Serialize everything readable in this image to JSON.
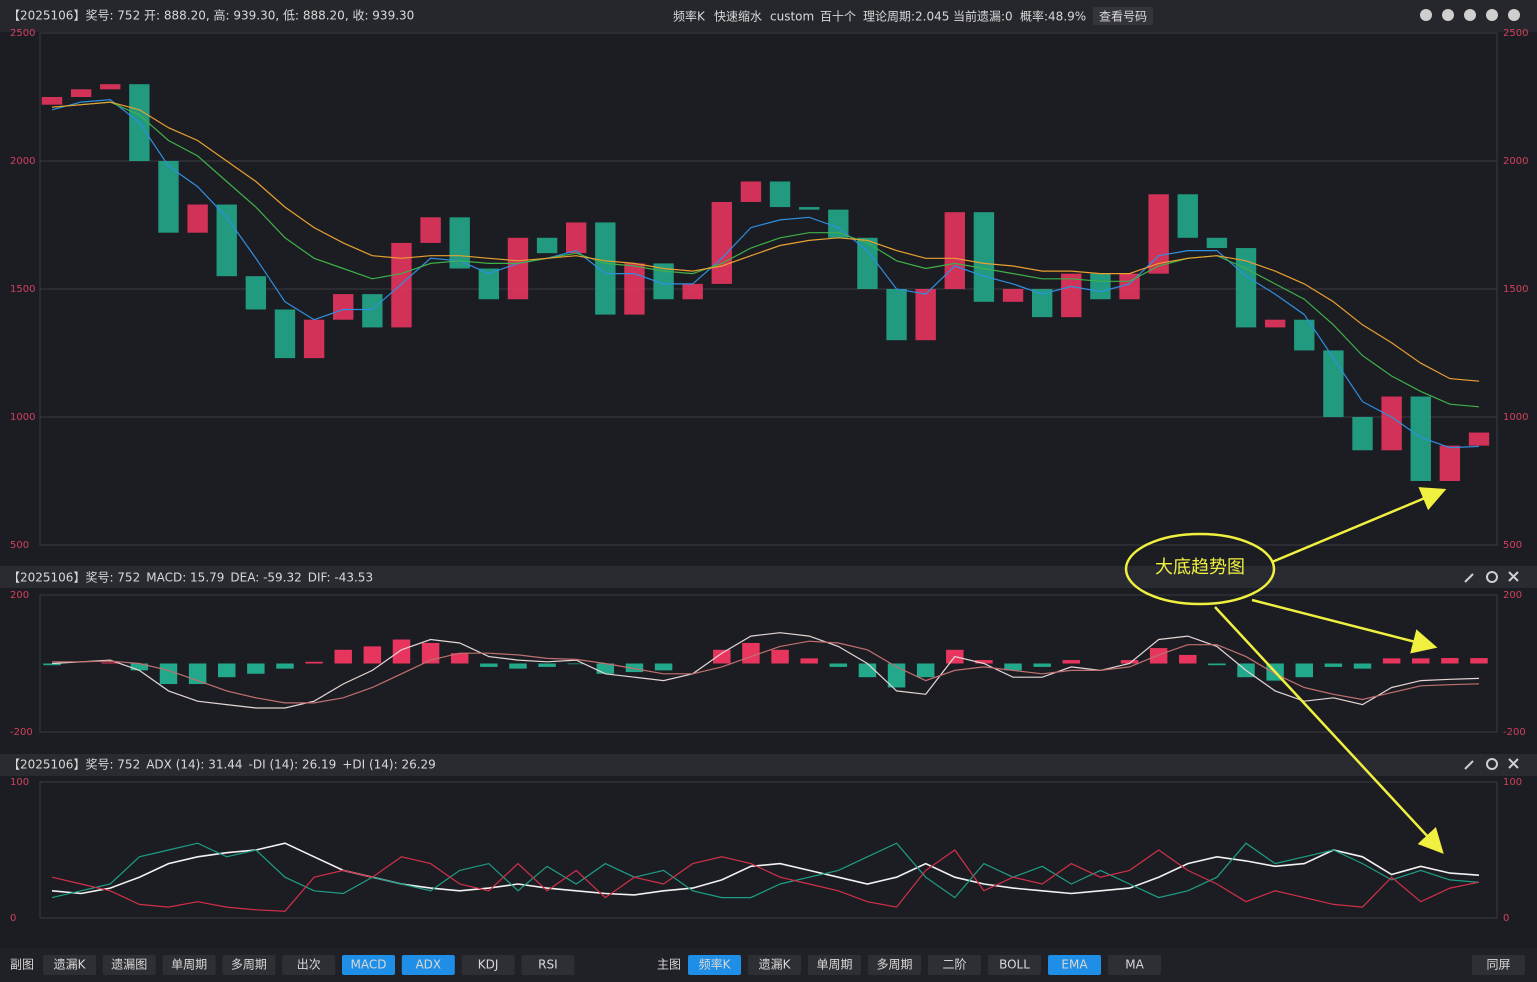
{
  "header": {
    "items": [
      "频率K",
      "快速缩水",
      "custom",
      "百十个",
      "理论周期:2.045",
      "当前遗漏:0",
      "概率:48.9%"
    ],
    "button": "查看号码"
  },
  "chart_data": [
    {
      "type": "candlestick",
      "title": "【2025106】奖号: 752   开: 888.20, 高: 939.30, 低: 888.20, 收: 939.30",
      "open": [
        2220,
        2250,
        2280,
        2300,
        2000,
        1720,
        1830,
        1550,
        1420,
        1230,
        1380,
        1480,
        1350,
        1680,
        1780,
        1580,
        1460,
        1700,
        1640,
        1760,
        1400,
        1600,
        1460,
        1520,
        1840,
        1920,
        1820,
        1810,
        1700,
        1500,
        1300,
        1500,
        1800,
        1450,
        1500,
        1390,
        1560,
        1460,
        1560,
        1870,
        1700,
        1660,
        1350,
        1380,
        1260,
        1000,
        870,
        1080,
        750,
        888.2
      ],
      "close": [
        2250,
        2280,
        2300,
        2000,
        1720,
        1830,
        1550,
        1420,
        1230,
        1380,
        1480,
        1350,
        1680,
        1780,
        1580,
        1460,
        1700,
        1640,
        1760,
        1400,
        1600,
        1460,
        1520,
        1840,
        1920,
        1820,
        1810,
        1700,
        1500,
        1300,
        1500,
        1800,
        1450,
        1500,
        1390,
        1560,
        1460,
        1560,
        1870,
        1700,
        1660,
        1350,
        1380,
        1260,
        1000,
        870,
        1080,
        750,
        888.2,
        939.3
      ],
      "up_color": "#e8355e",
      "down_color": "#22a88a",
      "lines": [
        {
          "color": "#2f8fe0",
          "values": [
            2200,
            2230,
            2240,
            2150,
            1980,
            1900,
            1780,
            1620,
            1450,
            1380,
            1420,
            1420,
            1520,
            1620,
            1610,
            1560,
            1600,
            1620,
            1650,
            1560,
            1560,
            1520,
            1520,
            1620,
            1740,
            1770,
            1780,
            1740,
            1650,
            1500,
            1480,
            1590,
            1550,
            1520,
            1480,
            1510,
            1490,
            1520,
            1630,
            1650,
            1650,
            1550,
            1480,
            1400,
            1230,
            1060,
            1000,
            920,
            880,
            885
          ]
        },
        {
          "color": "#3fb04a",
          "values": [
            2210,
            2220,
            2230,
            2180,
            2080,
            2020,
            1920,
            1820,
            1700,
            1620,
            1580,
            1540,
            1560,
            1600,
            1610,
            1600,
            1600,
            1620,
            1640,
            1600,
            1590,
            1570,
            1560,
            1600,
            1660,
            1700,
            1720,
            1720,
            1680,
            1610,
            1580,
            1600,
            1580,
            1560,
            1540,
            1540,
            1530,
            1530,
            1590,
            1620,
            1630,
            1580,
            1520,
            1460,
            1360,
            1240,
            1160,
            1100,
            1050,
            1040
          ]
        },
        {
          "color": "#e8a030",
          "values": [
            2210,
            2220,
            2230,
            2200,
            2130,
            2080,
            2000,
            1920,
            1820,
            1740,
            1680,
            1630,
            1620,
            1630,
            1630,
            1620,
            1610,
            1620,
            1630,
            1610,
            1600,
            1580,
            1570,
            1590,
            1630,
            1670,
            1690,
            1700,
            1690,
            1650,
            1620,
            1620,
            1600,
            1590,
            1570,
            1570,
            1560,
            1560,
            1600,
            1620,
            1630,
            1610,
            1570,
            1520,
            1450,
            1360,
            1290,
            1210,
            1150,
            1140
          ]
        }
      ],
      "ylim": [
        500,
        2500
      ],
      "yticks": [
        500,
        1000,
        1500,
        2000,
        2500
      ],
      "grid": true
    },
    {
      "type": "macd",
      "title": "【2025106】奖号: 752",
      "legend": [
        {
          "text": "MACD: 15.79",
          "color": "#e8355e"
        },
        {
          "text": "DEA: -59.32",
          "color": "#9a3a55"
        },
        {
          "text": "DIF: -43.53",
          "color": "#b8a868"
        }
      ],
      "series": [
        {
          "color": "#e6d6d6",
          "values": [
            0,
            5,
            10,
            -20,
            -80,
            -110,
            -120,
            -130,
            -130,
            -110,
            -60,
            -20,
            40,
            70,
            60,
            20,
            10,
            5,
            10,
            -30,
            -40,
            -50,
            -30,
            30,
            80,
            90,
            80,
            50,
            0,
            -80,
            -90,
            20,
            0,
            -40,
            -40,
            -10,
            -20,
            0,
            70,
            80,
            50,
            -20,
            -80,
            -110,
            -100,
            -120,
            -70,
            -50,
            -46,
            -43.53
          ]
        },
        {
          "color": "#c07070",
          "values": [
            5,
            5,
            7,
            0,
            -20,
            -50,
            -80,
            -100,
            -115,
            -115,
            -100,
            -70,
            -30,
            10,
            30,
            30,
            25,
            15,
            12,
            0,
            -15,
            -30,
            -30,
            -10,
            20,
            50,
            65,
            60,
            40,
            -10,
            -50,
            -20,
            -10,
            -20,
            -30,
            -20,
            -20,
            -10,
            25,
            55,
            55,
            20,
            -30,
            -70,
            -90,
            -105,
            -85,
            -65,
            -62,
            -59.32
          ]
        }
      ],
      "histogram": [
        -5,
        0,
        3,
        -20,
        -60,
        -60,
        -40,
        -30,
        -15,
        5,
        40,
        50,
        70,
        60,
        30,
        -10,
        -15,
        -10,
        -2,
        -30,
        -25,
        -20,
        0,
        40,
        60,
        40,
        15,
        -10,
        -40,
        -70,
        -40,
        40,
        10,
        -20,
        -10,
        10,
        0,
        10,
        45,
        25,
        -5,
        -40,
        -50,
        -40,
        -10,
        -15,
        15,
        15,
        16,
        15.79
      ],
      "up_color": "#e8355e",
      "down_color": "#22a88a",
      "ylim": [
        -200,
        200
      ],
      "yticks": [
        -200,
        200
      ]
    },
    {
      "type": "adx",
      "title": "【2025106】奖号: 752",
      "legend": [
        {
          "text": "ADX (14): 31.44",
          "color": "#dddddd"
        },
        {
          "text": "-DI (14): 26.19",
          "color": "#22a88a"
        },
        {
          "text": "+DI (14): 26.29",
          "color": "#e8355e"
        }
      ],
      "series": [
        {
          "color": "#f2f2f2",
          "values": [
            20,
            18,
            22,
            30,
            40,
            45,
            48,
            50,
            55,
            45,
            35,
            30,
            25,
            22,
            20,
            22,
            25,
            22,
            20,
            18,
            17,
            20,
            22,
            28,
            38,
            40,
            35,
            30,
            25,
            30,
            40,
            30,
            25,
            22,
            20,
            18,
            20,
            22,
            30,
            40,
            45,
            42,
            38,
            40,
            50,
            45,
            32,
            38,
            33,
            31.44
          ]
        },
        {
          "color": "#1e9e86",
          "values": [
            15,
            20,
            25,
            45,
            50,
            55,
            45,
            50,
            30,
            20,
            18,
            30,
            25,
            20,
            35,
            40,
            20,
            38,
            25,
            40,
            30,
            35,
            20,
            15,
            15,
            25,
            30,
            35,
            45,
            55,
            30,
            15,
            40,
            30,
            38,
            25,
            35,
            25,
            15,
            20,
            30,
            55,
            40,
            45,
            50,
            40,
            28,
            35,
            28,
            26.19
          ]
        },
        {
          "color": "#d0304a",
          "values": [
            30,
            25,
            20,
            10,
            8,
            12,
            8,
            6,
            5,
            30,
            35,
            30,
            45,
            40,
            25,
            20,
            40,
            20,
            35,
            15,
            30,
            25,
            40,
            45,
            40,
            30,
            25,
            20,
            12,
            8,
            35,
            50,
            20,
            30,
            25,
            40,
            30,
            35,
            50,
            35,
            25,
            12,
            20,
            15,
            10,
            8,
            30,
            12,
            22,
            26.29
          ]
        }
      ],
      "ylim": [
        0,
        100
      ],
      "yticks": [
        0,
        100
      ]
    }
  ],
  "annotation": "大底趋势图",
  "toolbar": {
    "left_label": "副图",
    "left_buttons": [
      {
        "label": "遗漏K",
        "active": false
      },
      {
        "label": "遗漏图",
        "active": false
      },
      {
        "label": "单周期",
        "active": false
      },
      {
        "label": "多周期",
        "active": false
      },
      {
        "label": "出次",
        "active": false
      },
      {
        "label": "MACD",
        "active": true
      },
      {
        "label": "ADX",
        "active": true
      },
      {
        "label": "KDJ",
        "active": false
      },
      {
        "label": "RSI",
        "active": false
      }
    ],
    "right_label": "主图",
    "right_buttons": [
      {
        "label": "频率K",
        "active": true
      },
      {
        "label": "遗漏K",
        "active": false
      },
      {
        "label": "单周期",
        "active": false
      },
      {
        "label": "多周期",
        "active": false
      },
      {
        "label": "二阶",
        "active": false
      },
      {
        "label": "BOLL",
        "active": false
      },
      {
        "label": "EMA",
        "active": true
      },
      {
        "label": "MA",
        "active": false
      }
    ],
    "end_button": "同屏"
  }
}
